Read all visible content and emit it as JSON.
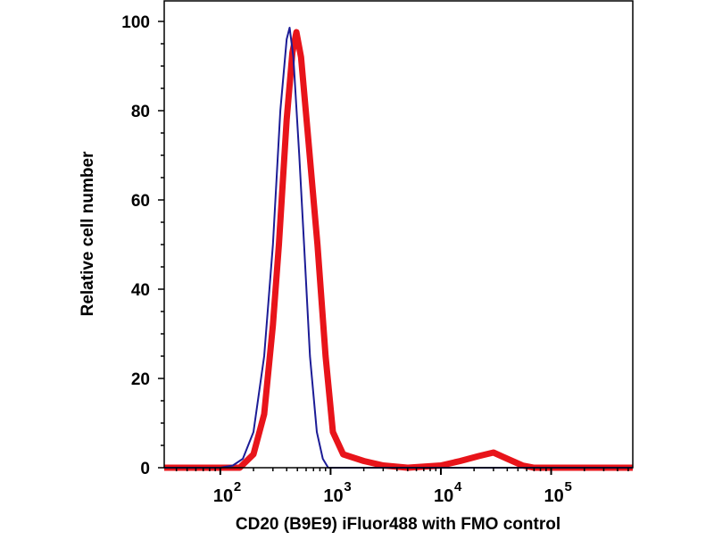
{
  "chart_data": {
    "type": "line",
    "title": "",
    "xlabel": "CD20 (B9E9) iFluor488 with FMO control",
    "ylabel": "Relative cell number",
    "xscale": "log",
    "xlim": [
      31,
      550000
    ],
    "ylim": [
      0,
      100
    ],
    "x_ticks": [
      {
        "value": 100,
        "base": "10",
        "exp": "2"
      },
      {
        "value": 1000,
        "base": "10",
        "exp": "3"
      },
      {
        "value": 10000,
        "base": "10",
        "exp": "4"
      },
      {
        "value": 100000,
        "base": "10",
        "exp": "5"
      }
    ],
    "y_ticks": [
      "0",
      "20",
      "40",
      "60",
      "80",
      "100"
    ],
    "grid": false,
    "series": [
      {
        "name": "CD20 (B9E9) iFluor488",
        "color": "#e8141a",
        "points": [
          [
            31,
            0
          ],
          [
            150,
            0
          ],
          [
            200,
            3
          ],
          [
            250,
            12
          ],
          [
            300,
            32
          ],
          [
            340,
            50
          ],
          [
            400,
            78
          ],
          [
            450,
            93
          ],
          [
            490,
            97.6
          ],
          [
            540,
            92
          ],
          [
            620,
            75
          ],
          [
            760,
            50
          ],
          [
            900,
            25
          ],
          [
            1050,
            8
          ],
          [
            1300,
            3
          ],
          [
            2000,
            1.5
          ],
          [
            3000,
            0.5
          ],
          [
            5000,
            0
          ],
          [
            10000,
            0.5
          ],
          [
            15000,
            1.5
          ],
          [
            22000,
            2.6
          ],
          [
            30000,
            3.4
          ],
          [
            40000,
            2
          ],
          [
            55000,
            0.5
          ],
          [
            70000,
            0
          ],
          [
            550000,
            0
          ]
        ]
      },
      {
        "name": "FMO control",
        "color": "#1c1c96",
        "points": [
          [
            31,
            0
          ],
          [
            100,
            0
          ],
          [
            130,
            0.5
          ],
          [
            160,
            2
          ],
          [
            200,
            8
          ],
          [
            250,
            25
          ],
          [
            300,
            50
          ],
          [
            350,
            80
          ],
          [
            400,
            96
          ],
          [
            425,
            98.6
          ],
          [
            460,
            92
          ],
          [
            520,
            70
          ],
          [
            575,
            50
          ],
          [
            650,
            25
          ],
          [
            750,
            8
          ],
          [
            850,
            2
          ],
          [
            950,
            0
          ],
          [
            550000,
            0
          ]
        ]
      }
    ]
  }
}
